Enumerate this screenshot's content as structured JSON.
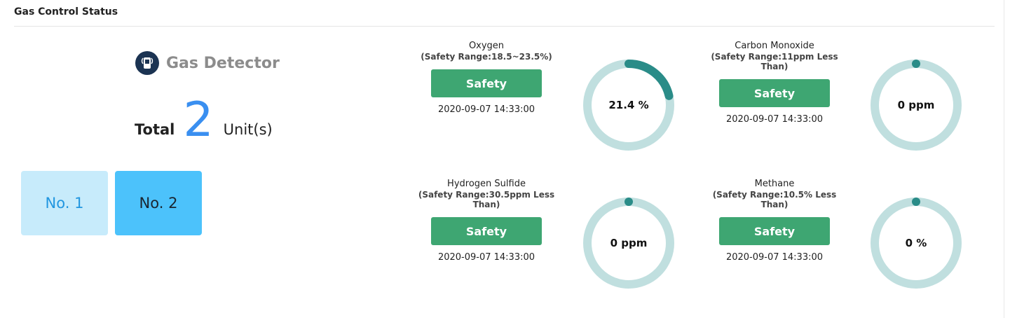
{
  "panel": {
    "title": "Gas Control Status"
  },
  "summary": {
    "detector_label": "Gas Detector",
    "total_label": "Total",
    "total_count": "2",
    "unit_label": "Unit(s)",
    "units": [
      {
        "label": "No. 1"
      },
      {
        "label": "No. 2"
      }
    ]
  },
  "gases": [
    {
      "name": "Oxygen",
      "range_lines": [
        "(Safety Range:18.5~23.5%)"
      ],
      "status": "Safety",
      "timestamp": "2020-09-07 14:33:00",
      "display": "21.4 %",
      "fraction": 0.214
    },
    {
      "name": "Carbon Monoxide",
      "range_lines": [
        "(Safety Range:11ppm Less",
        "Than)"
      ],
      "status": "Safety",
      "timestamp": "2020-09-07 14:33:00",
      "display": "0 ppm",
      "fraction": 0
    },
    {
      "name": "Hydrogen Sulfide",
      "range_lines": [
        "(Safety Range:30.5ppm Less",
        "Than)"
      ],
      "status": "Safety",
      "timestamp": "2020-09-07 14:33:00",
      "display": "0 ppm",
      "fraction": 0
    },
    {
      "name": "Methane",
      "range_lines": [
        "(Safety Range:10.5% Less",
        "Than)"
      ],
      "status": "Safety",
      "timestamp": "2020-09-07 14:33:00",
      "display": "0 %",
      "fraction": 0
    }
  ],
  "colors": {
    "safety": "#3ea672",
    "gauge_track": "#c0dfdf",
    "gauge_fill": "#2a8c88",
    "count": "#3a8ff0"
  }
}
